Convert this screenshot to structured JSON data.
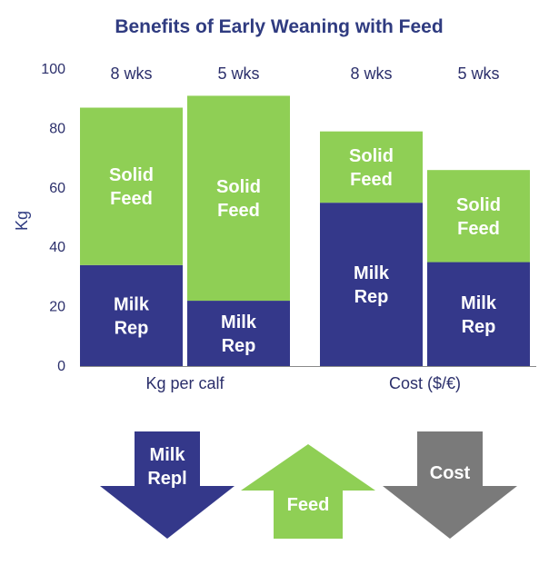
{
  "colors": {
    "milk": "#34388a",
    "feed": "#8fcf55",
    "cost_arrow": "#7a7a7a",
    "text": "#2b2f6b"
  },
  "chart_data": {
    "type": "bar",
    "stacked": true,
    "title": "Benefits of Early Weaning with Feed",
    "ylabel": "Kg",
    "ylim": [
      0,
      100
    ],
    "yticks": [
      0,
      20,
      40,
      60,
      80,
      100
    ],
    "groups": [
      "Kg per calf",
      "Cost ($/€)"
    ],
    "categories": [
      "8 wks",
      "5 wks",
      "8 wks",
      "5 wks"
    ],
    "category_group": [
      0,
      0,
      1,
      1
    ],
    "series": [
      {
        "name": "Milk Rep",
        "values": [
          34,
          22,
          55,
          35
        ]
      },
      {
        "name": "Solid Feed",
        "values": [
          53,
          69,
          24,
          31
        ]
      }
    ],
    "segment_labels": {
      "milk": [
        "Milk\nRep",
        "Milk\nRep",
        "Milk\nRep",
        "Milk\nRep"
      ],
      "feed": [
        "Solid\nFeed",
        "Solid\nFeed",
        "Solid\nFeed",
        "Solid\nFeed"
      ]
    }
  },
  "arrows": [
    {
      "label": "Milk\nRepl",
      "direction": "down",
      "color": "#34388a"
    },
    {
      "label": "Feed",
      "direction": "up",
      "color": "#8fcf55"
    },
    {
      "label": "Cost",
      "direction": "down",
      "color": "#7a7a7a"
    }
  ]
}
